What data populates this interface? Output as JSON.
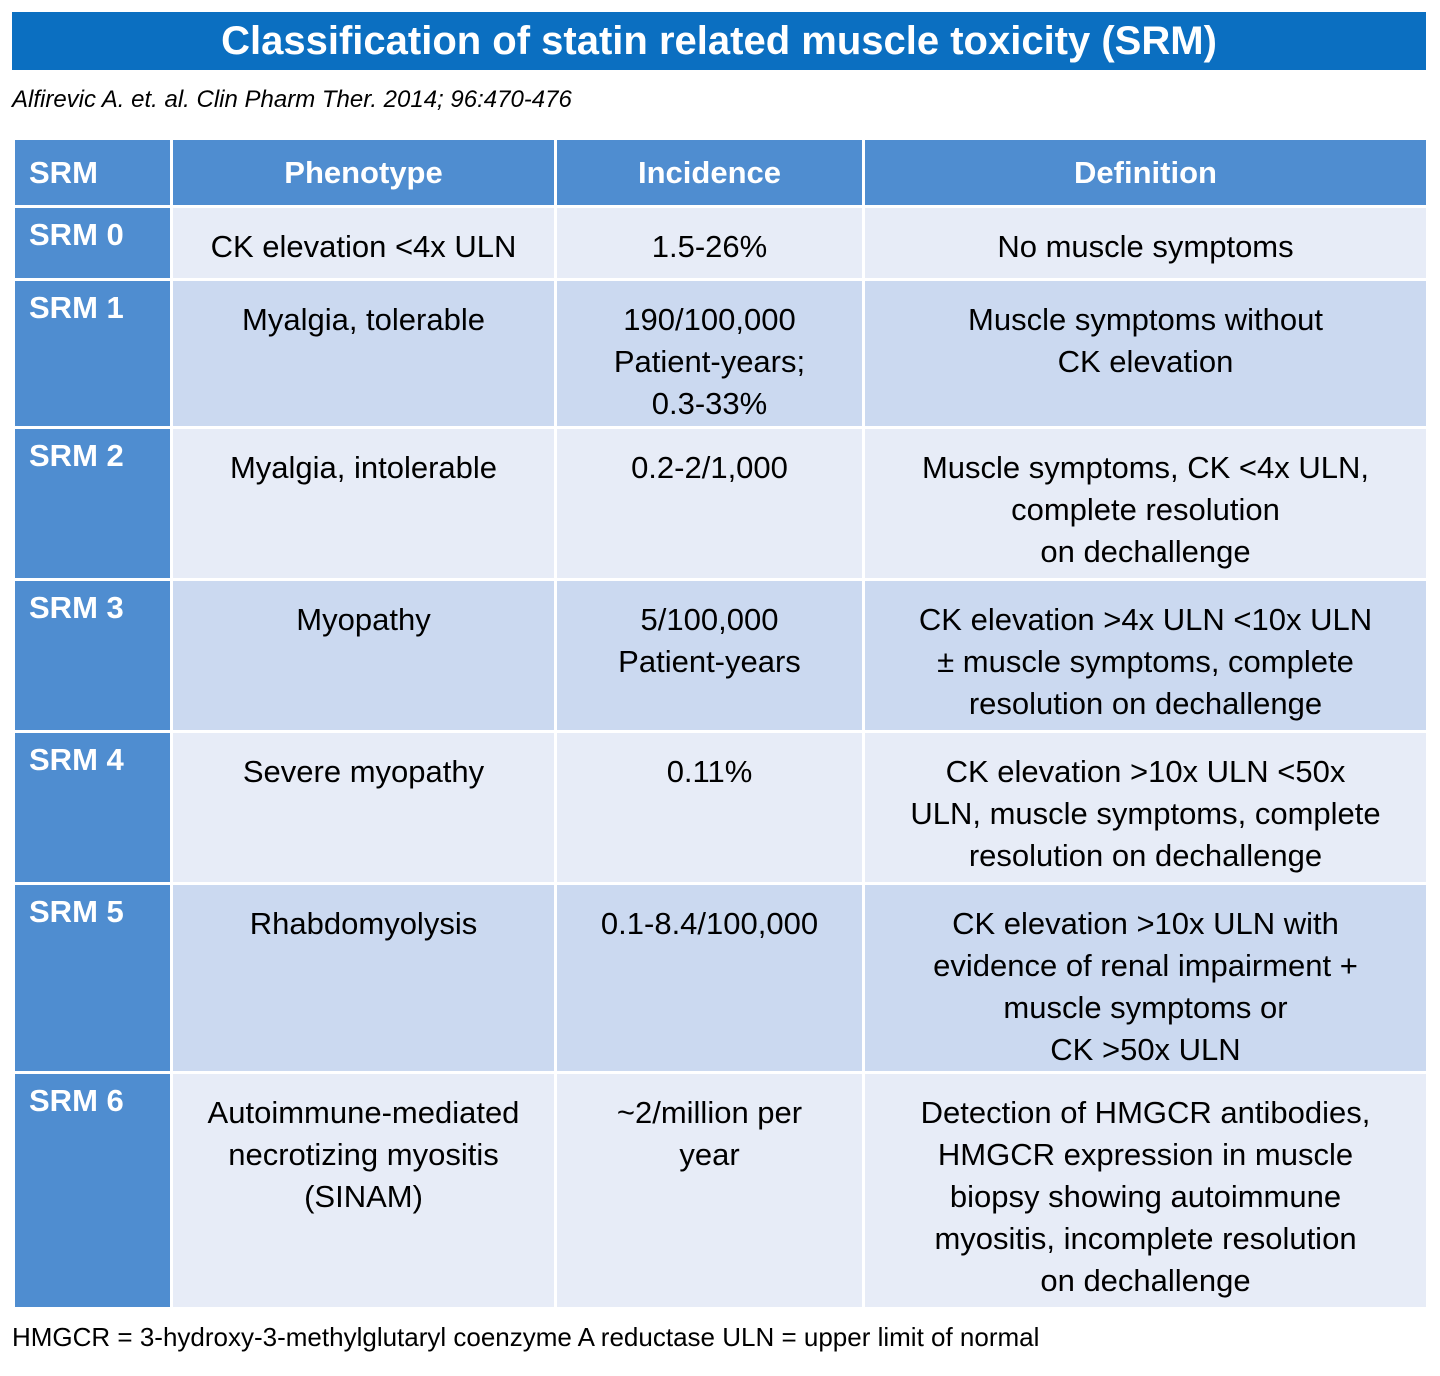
{
  "title": "Classification of statin related muscle toxicity (SRM)",
  "citation": "Alfirevic A. et. al. Clin Pharm Ther. 2014; 96:470-476",
  "table": {
    "headers": [
      "SRM",
      "Phenotype",
      "Incidence",
      "Definition"
    ],
    "rows": [
      {
        "srm": "SRM 0",
        "phenotype": [
          "CK elevation <4x ULN"
        ],
        "incidence": [
          "1.5-26%"
        ],
        "definition": [
          "No muscle symptoms"
        ]
      },
      {
        "srm": "SRM 1",
        "phenotype": [
          "Myalgia, tolerable"
        ],
        "incidence": [
          "190/100,000",
          "Patient-years;",
          "0.3-33%"
        ],
        "definition": [
          "Muscle symptoms without",
          "CK elevation"
        ]
      },
      {
        "srm": "SRM 2",
        "phenotype": [
          "Myalgia, intolerable"
        ],
        "incidence": [
          "0.2-2/1,000"
        ],
        "definition": [
          "Muscle symptoms, CK <4x ULN,",
          "complete resolution",
          "on dechallenge"
        ]
      },
      {
        "srm": "SRM 3",
        "phenotype": [
          "Myopathy"
        ],
        "incidence": [
          "5/100,000",
          "Patient-years"
        ],
        "definition": [
          "CK elevation >4x ULN <10x ULN",
          "± muscle symptoms, complete",
          "resolution on dechallenge"
        ]
      },
      {
        "srm": "SRM 4",
        "phenotype": [
          "Severe myopathy"
        ],
        "incidence": [
          "0.11%"
        ],
        "definition": [
          "CK elevation >10x ULN <50x",
          "ULN, muscle symptoms, complete",
          "resolution on dechallenge"
        ]
      },
      {
        "srm": "SRM 5",
        "phenotype": [
          "Rhabdomyolysis"
        ],
        "incidence": [
          "0.1-8.4/100,000"
        ],
        "definition": [
          "CK elevation >10x ULN with",
          "evidence of renal impairment +",
          "muscle symptoms or",
          "CK >50x ULN"
        ]
      },
      {
        "srm": "SRM 6",
        "phenotype": [
          "Autoimmune-mediated",
          "necrotizing myositis",
          "(SINAM)"
        ],
        "incidence": [
          "~2/million per",
          "year"
        ],
        "definition": [
          "Detection of HMGCR antibodies,",
          "HMGCR expression in muscle",
          "biopsy showing autoimmune",
          "myositis, incomplete resolution",
          "on dechallenge"
        ]
      }
    ]
  },
  "footnote": "HMGCR = 3-hydroxy-3-methylglutaryl coenzyme A reductase ULN = upper limit of normal"
}
